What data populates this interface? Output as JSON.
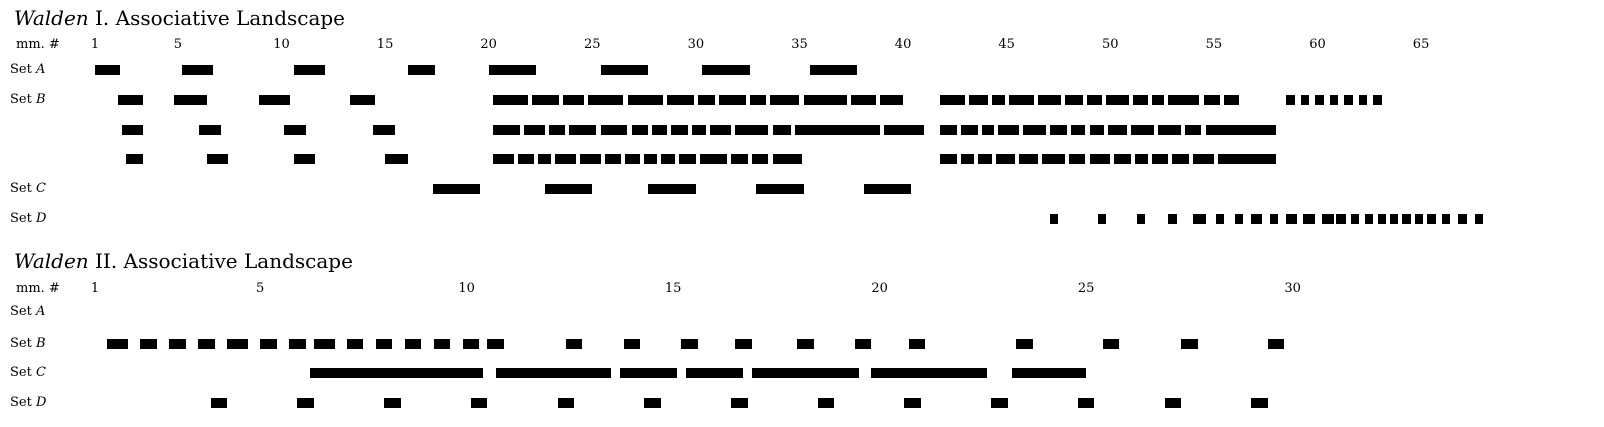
{
  "sections": [
    {
      "title_work": "Walden",
      "title_rest": " I. Associative Landscape",
      "measure_label": "mm. #",
      "measure_ticks": [
        "1",
        "5",
        "10",
        "15",
        "20",
        "25",
        "30",
        "35",
        "40",
        "45",
        "50",
        "55",
        "60",
        "65"
      ],
      "set_prefix": "Set",
      "rows": [
        {
          "set": "A",
          "segments": [
            [
              1,
              2.2
            ],
            [
              5.2,
              6.7
            ],
            [
              10.6,
              12.1
            ],
            [
              16.1,
              17.4
            ],
            [
              20,
              22.3
            ],
            [
              25.4,
              27.7
            ],
            [
              30.3,
              32.6
            ],
            [
              35.5,
              37.8
            ]
          ]
        },
        {
          "set": "B",
          "segments": [
            [
              2.1,
              3.3
            ],
            [
              4.8,
              6.4
            ],
            [
              8.9,
              10.4
            ],
            [
              13.3,
              14.5
            ],
            [
              20.2,
              21.9
            ],
            [
              22.1,
              23.4
            ],
            [
              23.6,
              24.6
            ],
            [
              24.8,
              26.5
            ],
            [
              26.7,
              28.4
            ],
            [
              28.6,
              29.9
            ],
            [
              30.1,
              30.9
            ],
            [
              31.1,
              32.4
            ],
            [
              32.6,
              33.4
            ],
            [
              33.6,
              35
            ],
            [
              35.2,
              37.3
            ],
            [
              37.5,
              38.7
            ],
            [
              38.9,
              40
            ],
            [
              41.8,
              43
            ],
            [
              43.2,
              44.1
            ],
            [
              44.3,
              44.9
            ],
            [
              45.1,
              46.3
            ],
            [
              46.5,
              47.6
            ],
            [
              47.8,
              48.7
            ],
            [
              48.9,
              49.6
            ],
            [
              49.8,
              50.9
            ],
            [
              51.1,
              51.8
            ],
            [
              52,
              52.6
            ],
            [
              52.8,
              54.3
            ],
            [
              54.5,
              55.3
            ],
            [
              55.5,
              56.2
            ],
            [
              58.5,
              58.9
            ],
            [
              59.2,
              59.6
            ],
            [
              59.9,
              60.3
            ],
            [
              60.6,
              61
            ],
            [
              61.3,
              61.7
            ],
            [
              62,
              62.4
            ],
            [
              62.7,
              63.1
            ]
          ]
        },
        {
          "set": "",
          "segments": [
            [
              2.3,
              3.3
            ],
            [
              6,
              7.1
            ],
            [
              10.1,
              11.2
            ],
            [
              14.4,
              15.5
            ],
            [
              20.2,
              21.5
            ],
            [
              21.7,
              22.7
            ],
            [
              22.9,
              23.7
            ],
            [
              23.9,
              25.2
            ],
            [
              25.4,
              26.7
            ],
            [
              26.9,
              27.7
            ],
            [
              27.9,
              28.6
            ],
            [
              28.8,
              29.6
            ],
            [
              29.8,
              30.5
            ],
            [
              30.7,
              31.7
            ],
            [
              31.9,
              33.5
            ],
            [
              33.7,
              34.6
            ],
            [
              34.8,
              38.9
            ],
            [
              39.1,
              41
            ],
            [
              41.8,
              42.6
            ],
            [
              42.8,
              43.6
            ],
            [
              43.8,
              44.4
            ],
            [
              44.6,
              45.6
            ],
            [
              45.8,
              46.9
            ],
            [
              47.1,
              47.9
            ],
            [
              48.1,
              48.8
            ],
            [
              49,
              49.7
            ],
            [
              49.9,
              50.8
            ],
            [
              51,
              52.1
            ],
            [
              52.3,
              53.4
            ],
            [
              53.6,
              54.4
            ],
            [
              54.6,
              58
            ]
          ]
        },
        {
          "set": "",
          "segments": [
            [
              2.5,
              3.3
            ],
            [
              6.4,
              7.4
            ],
            [
              10.6,
              11.6
            ],
            [
              15,
              16.1
            ],
            [
              20.2,
              21.2
            ],
            [
              21.4,
              22.2
            ],
            [
              22.4,
              23
            ],
            [
              23.2,
              24.2
            ],
            [
              24.4,
              25.4
            ],
            [
              25.6,
              26.4
            ],
            [
              26.6,
              27.3
            ],
            [
              27.5,
              28.1
            ],
            [
              28.3,
              29
            ],
            [
              29.2,
              30
            ],
            [
              30.2,
              31.5
            ],
            [
              31.7,
              32.5
            ],
            [
              32.7,
              33.5
            ],
            [
              33.7,
              35.1
            ],
            [
              41.8,
              42.6
            ],
            [
              42.8,
              43.4
            ],
            [
              43.6,
              44.3
            ],
            [
              44.5,
              45.4
            ],
            [
              45.6,
              46.5
            ],
            [
              46.7,
              47.8
            ],
            [
              48,
              48.8
            ],
            [
              49,
              50
            ],
            [
              50.2,
              51
            ],
            [
              51.2,
              51.8
            ],
            [
              52,
              52.8
            ],
            [
              53,
              53.8
            ],
            [
              54,
              55
            ],
            [
              55.2,
              58
            ]
          ]
        },
        {
          "set": "C",
          "segments": [
            [
              17.3,
              19.6
            ],
            [
              22.7,
              25
            ],
            [
              27.7,
              30
            ],
            [
              32.9,
              35.2
            ],
            [
              38.1,
              40.4
            ]
          ]
        },
        {
          "set": "D",
          "segments": [
            [
              47.1,
              47.5
            ],
            [
              49.4,
              49.8
            ],
            [
              51.3,
              51.7
            ],
            [
              52.8,
              53.2
            ],
            [
              54,
              54.6
            ],
            [
              55.1,
              55.5
            ],
            [
              56,
              56.4
            ],
            [
              56.8,
              57.3
            ],
            [
              57.7,
              58.1
            ],
            [
              58.5,
              59
            ],
            [
              59.3,
              59.9
            ],
            [
              60.2,
              60.8
            ],
            [
              60.9,
              61.4
            ],
            [
              61.6,
              62
            ],
            [
              62.3,
              62.7
            ],
            [
              62.9,
              63.3
            ],
            [
              63.5,
              63.9
            ],
            [
              64.1,
              64.5
            ],
            [
              64.7,
              65.1
            ],
            [
              65.3,
              65.7
            ],
            [
              66,
              66.4
            ],
            [
              66.8,
              67.2
            ],
            [
              67.6,
              68
            ]
          ]
        }
      ]
    },
    {
      "title_work": "Walden",
      "title_rest": " II. Associative Landscape",
      "measure_label": "mm. #",
      "measure_ticks": [
        "1",
        "5",
        "10",
        "15",
        "20",
        "25",
        "30"
      ],
      "set_prefix": "Set",
      "rows": [
        {
          "set": "A",
          "segments": []
        },
        {
          "set": "B",
          "segments": [
            [
              1.3,
              1.8
            ],
            [
              2.1,
              2.5
            ],
            [
              2.8,
              3.2
            ],
            [
              3.5,
              3.9
            ],
            [
              4.2,
              4.7
            ],
            [
              5,
              5.4
            ],
            [
              5.7,
              6.1
            ],
            [
              6.3,
              6.8
            ],
            [
              7.1,
              7.5
            ],
            [
              7.8,
              8.2
            ],
            [
              8.5,
              8.9
            ],
            [
              9.2,
              9.6
            ],
            [
              9.9,
              10.3
            ],
            [
              10.5,
              10.9
            ],
            [
              12.4,
              12.8
            ],
            [
              13.8,
              14.2
            ],
            [
              15.2,
              15.6
            ],
            [
              16.5,
              16.9
            ],
            [
              18,
              18.4
            ],
            [
              19.4,
              19.8
            ],
            [
              20.7,
              21.1
            ],
            [
              23.3,
              23.7
            ],
            [
              25.4,
              25.8
            ],
            [
              27.3,
              27.7
            ],
            [
              29.4,
              29.8
            ]
          ]
        },
        {
          "set": "C",
          "segments": [
            [
              6.2,
              10.4
            ],
            [
              10.7,
              13.5
            ],
            [
              13.7,
              15.1
            ],
            [
              15.3,
              16.7
            ],
            [
              16.9,
              19.5
            ],
            [
              19.8,
              22.6
            ],
            [
              23.2,
              25
            ]
          ]
        },
        {
          "set": "D",
          "segments": [
            [
              3.8,
              4.2
            ],
            [
              5.9,
              6.3
            ],
            [
              8,
              8.4
            ],
            [
              10.1,
              10.5
            ],
            [
              12.2,
              12.6
            ],
            [
              14.3,
              14.7
            ],
            [
              16.4,
              16.8
            ],
            [
              18.5,
              18.9
            ],
            [
              20.6,
              21
            ],
            [
              22.7,
              23.1
            ],
            [
              24.8,
              25.2
            ],
            [
              26.9,
              27.3
            ],
            [
              29,
              29.4
            ]
          ]
        }
      ]
    }
  ]
}
